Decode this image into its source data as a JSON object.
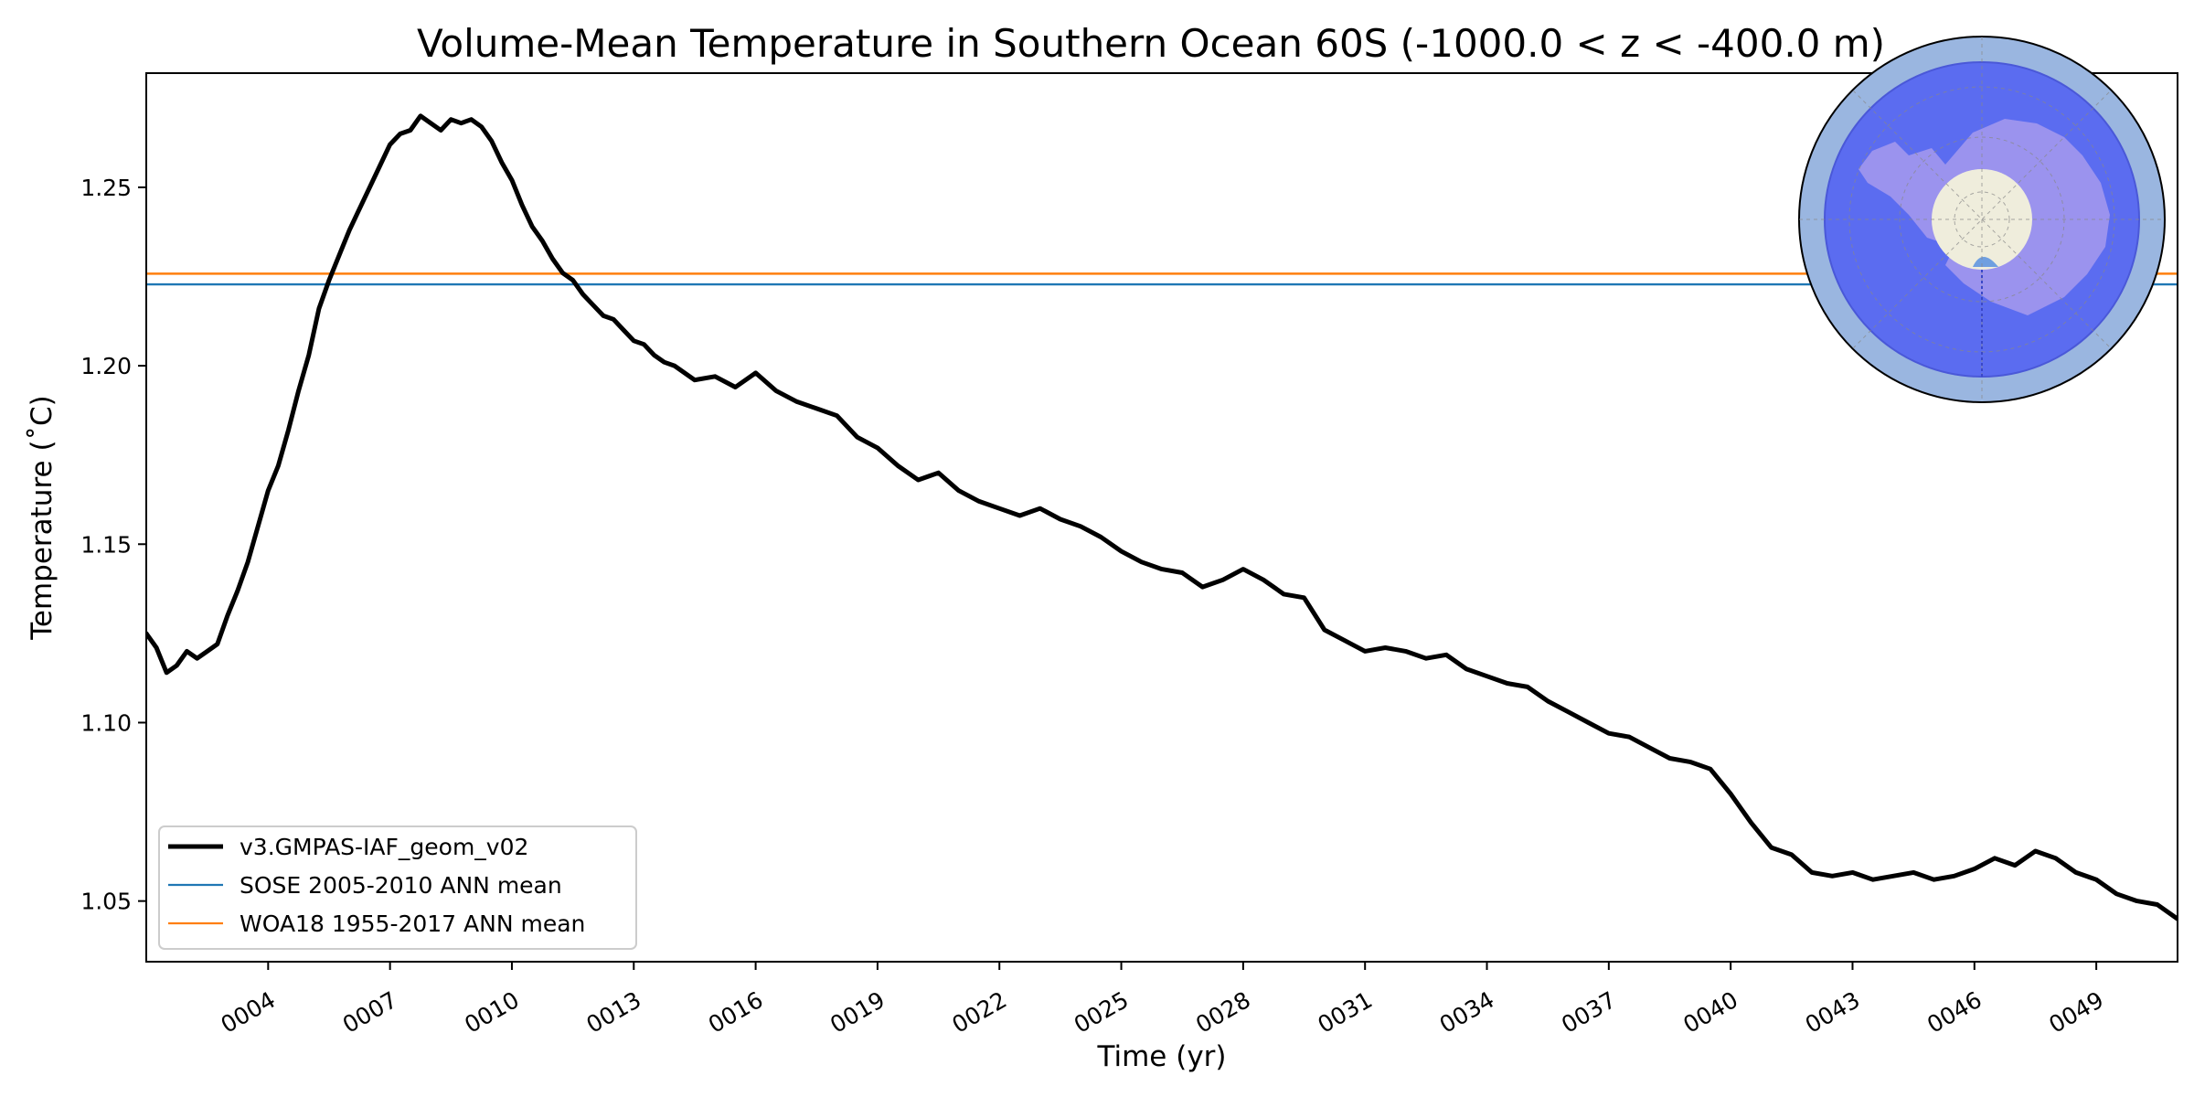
{
  "chart_data": {
    "type": "line",
    "title": "Volume-Mean Temperature in Southern Ocean 60S (-1000.0 < z < -400.0 m)",
    "xlabel": "Time (yr)",
    "ylabel": "Temperature (˚C)",
    "xlim": [
      1,
      51
    ],
    "ylim": [
      1.033,
      1.282
    ],
    "x_ticks": [
      4,
      7,
      10,
      13,
      16,
      19,
      22,
      25,
      28,
      31,
      34,
      37,
      40,
      43,
      46,
      49
    ],
    "x_tick_labels": [
      "0004",
      "0007",
      "0010",
      "0013",
      "0016",
      "0019",
      "0022",
      "0025",
      "0028",
      "0031",
      "0034",
      "0037",
      "0040",
      "0043",
      "0046",
      "0049"
    ],
    "y_ticks": [
      1.05,
      1.1,
      1.15,
      1.2,
      1.25
    ],
    "y_tick_labels": [
      "1.05",
      "1.10",
      "1.15",
      "1.20",
      "1.25"
    ],
    "legend_location": "lower-left",
    "series": [
      {
        "name": "v3.GMPAS-IAF_geom_v02",
        "color": "#000000",
        "style": "thick-line",
        "x": [
          1.0,
          1.25,
          1.5,
          1.75,
          2.0,
          2.25,
          2.5,
          2.75,
          3.0,
          3.25,
          3.5,
          3.75,
          4.0,
          4.25,
          4.5,
          4.75,
          5.0,
          5.25,
          5.5,
          5.75,
          6.0,
          6.25,
          6.5,
          6.75,
          7.0,
          7.25,
          7.5,
          7.75,
          8.0,
          8.25,
          8.5,
          8.75,
          9.0,
          9.25,
          9.5,
          9.75,
          10.0,
          10.25,
          10.5,
          10.75,
          11.0,
          11.25,
          11.5,
          11.75,
          12.0,
          12.25,
          12.5,
          12.75,
          13.0,
          13.25,
          13.5,
          13.75,
          14.0,
          14.5,
          15.0,
          15.5,
          16.0,
          16.5,
          17.0,
          17.5,
          18.0,
          18.5,
          19.0,
          19.5,
          20.0,
          20.5,
          21.0,
          21.5,
          22.0,
          22.5,
          23.0,
          23.5,
          24.0,
          24.5,
          25.0,
          25.5,
          26.0,
          26.5,
          27.0,
          27.5,
          28.0,
          28.5,
          29.0,
          29.5,
          30.0,
          30.5,
          31.0,
          31.5,
          32.0,
          32.5,
          33.0,
          33.5,
          34.0,
          34.5,
          35.0,
          35.5,
          36.0,
          36.5,
          37.0,
          37.5,
          38.0,
          38.5,
          39.0,
          39.5,
          40.0,
          40.5,
          41.0,
          41.5,
          42.0,
          42.5,
          43.0,
          43.5,
          44.0,
          44.5,
          45.0,
          45.5,
          46.0,
          46.5,
          47.0,
          47.5,
          48.0,
          48.5,
          49.0,
          49.5,
          50.0,
          50.5,
          51.0
        ],
        "y": [
          1.125,
          1.121,
          1.114,
          1.116,
          1.12,
          1.118,
          1.12,
          1.122,
          1.13,
          1.137,
          1.145,
          1.155,
          1.165,
          1.172,
          1.182,
          1.193,
          1.203,
          1.216,
          1.224,
          1.231,
          1.238,
          1.244,
          1.25,
          1.256,
          1.262,
          1.265,
          1.266,
          1.27,
          1.268,
          1.266,
          1.269,
          1.268,
          1.269,
          1.267,
          1.263,
          1.257,
          1.252,
          1.245,
          1.239,
          1.235,
          1.23,
          1.226,
          1.224,
          1.22,
          1.217,
          1.214,
          1.213,
          1.21,
          1.207,
          1.206,
          1.203,
          1.201,
          1.2,
          1.196,
          1.197,
          1.194,
          1.198,
          1.193,
          1.19,
          1.188,
          1.186,
          1.18,
          1.177,
          1.172,
          1.168,
          1.17,
          1.165,
          1.162,
          1.16,
          1.158,
          1.16,
          1.157,
          1.155,
          1.152,
          1.148,
          1.145,
          1.143,
          1.142,
          1.138,
          1.14,
          1.143,
          1.14,
          1.136,
          1.135,
          1.126,
          1.123,
          1.12,
          1.121,
          1.12,
          1.118,
          1.119,
          1.115,
          1.113,
          1.111,
          1.11,
          1.106,
          1.103,
          1.1,
          1.097,
          1.096,
          1.093,
          1.09,
          1.089,
          1.087,
          1.08,
          1.072,
          1.065,
          1.063,
          1.058,
          1.057,
          1.058,
          1.056,
          1.057,
          1.058,
          1.056,
          1.057,
          1.059,
          1.062,
          1.06,
          1.064,
          1.062,
          1.058,
          1.056,
          1.052,
          1.05,
          1.049,
          1.045
        ]
      },
      {
        "name": "SOSE 2005-2010 ANN mean",
        "color": "#1f77b4",
        "style": "horizontal-line",
        "value": 1.2228
      },
      {
        "name": "WOA18 1955-2017 ANN mean",
        "color": "#ff7f0e",
        "style": "horizontal-line",
        "value": 1.2258
      }
    ],
    "inset_map": {
      "description_icon": "antarctica-polar-map-icon",
      "ring_color": "#9ab6e0",
      "region_color": "#5b6cf0",
      "land_color": "#9b93ee",
      "pole_color": "#efeddc"
    }
  }
}
